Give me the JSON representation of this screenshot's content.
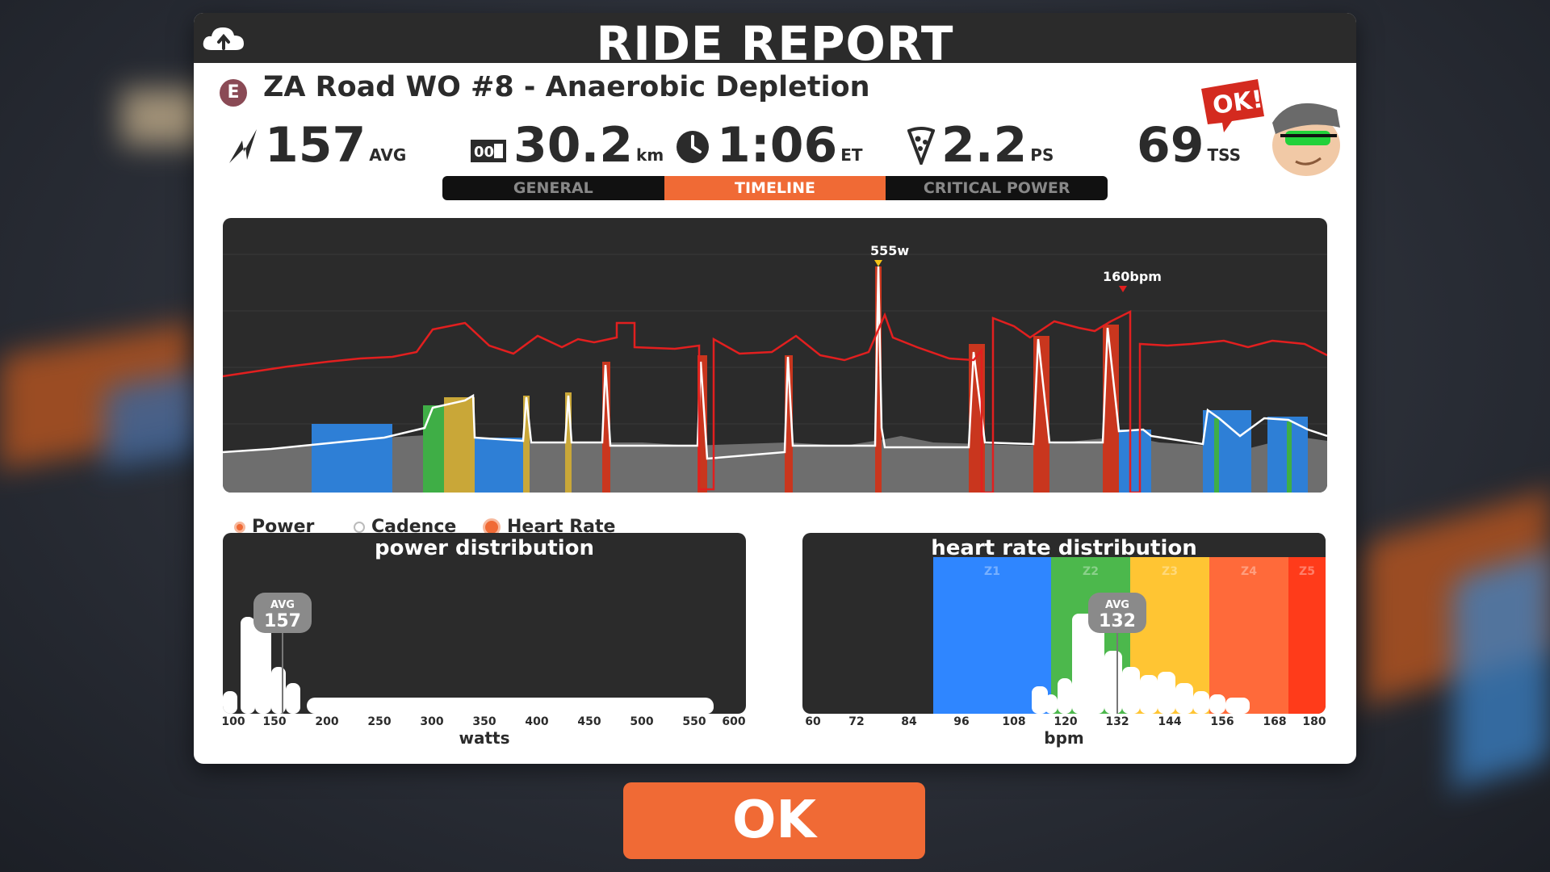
{
  "header": {
    "title": "RIDE REPORT",
    "upload_icon": "cloud-upload-icon"
  },
  "workout": {
    "badge": "E",
    "name": "ZA Road WO #8 - Anaerobic Depletion"
  },
  "stats": {
    "avg_power": {
      "value": "157",
      "unit": "AVG",
      "icon": "power-bolt-icon"
    },
    "distance": {
      "value": "30.2",
      "unit": "km",
      "icon": "odometer-icon",
      "icon_text": "00"
    },
    "time": {
      "value": "1:06",
      "unit": "ET",
      "icon": "clock-icon"
    },
    "pizza": {
      "value": "2.2",
      "unit": "PS",
      "icon": "pizza-slice-icon"
    },
    "tss": {
      "value": "69",
      "unit": "TSS"
    }
  },
  "ok_badge": {
    "text": "OK!"
  },
  "tabs": [
    {
      "label": "GENERAL",
      "active": false
    },
    {
      "label": "TIMELINE",
      "active": true
    },
    {
      "label": "CRITICAL POWER",
      "active": false
    }
  ],
  "timeline": {
    "peak_power_label": "555w",
    "peak_hr_label": "160bpm",
    "colors": {
      "hr_line": "#e21f1f",
      "power_line": "#ffffff",
      "z1": "#2e7fd6",
      "z2": "#3fae46",
      "z3": "#c9a738",
      "z5": "#c9361e"
    }
  },
  "legend": [
    {
      "label": "Power",
      "selected": true
    },
    {
      "label": "Cadence",
      "selected": false
    },
    {
      "label": "Heart Rate",
      "selected": true
    }
  ],
  "power_distribution": {
    "title": "power distribution",
    "avg_label": "AVG",
    "avg_value": "157",
    "ticks": [
      "100",
      "150",
      "200",
      "250",
      "300",
      "350",
      "400",
      "450",
      "500",
      "550",
      "600"
    ],
    "xlabel": "watts"
  },
  "hr_distribution": {
    "title": "heart rate distribution",
    "avg_label": "AVG",
    "avg_value": "132",
    "zones": [
      "Z1",
      "Z2",
      "Z3",
      "Z4",
      "Z5"
    ],
    "zone_colors": [
      "#2f86ff",
      "#4cb84c",
      "#ffc533",
      "#ff6a3a",
      "#ff3b1a"
    ],
    "ticks": [
      "60",
      "72",
      "84",
      "96",
      "108",
      "120",
      "132",
      "144",
      "156",
      "168",
      "180"
    ],
    "xlabel": "bpm"
  },
  "ok_button": {
    "label": "OK"
  }
}
